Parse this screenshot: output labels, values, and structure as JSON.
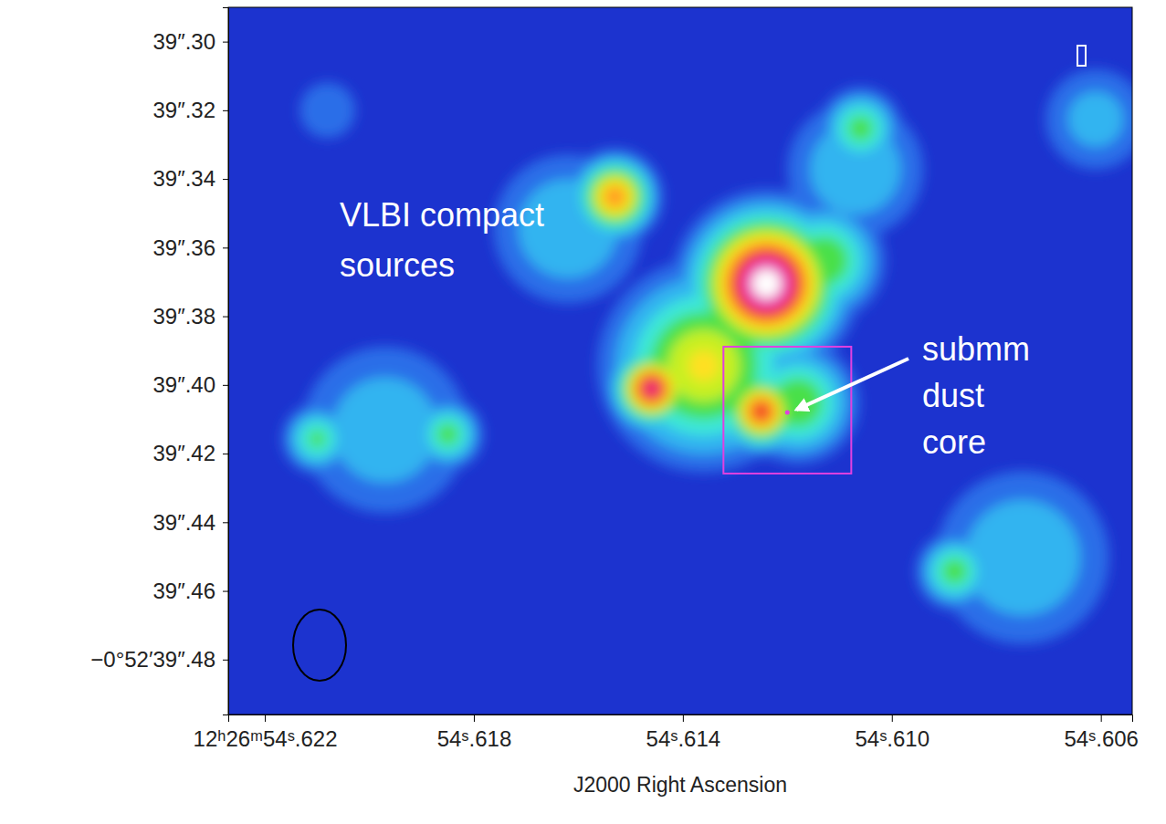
{
  "chart_data": {
    "type": "image",
    "xlabel": "J2000 Right Ascension",
    "xlim": [
      54.6227,
      54.6054
    ],
    "xticks": [
      {
        "value": 54.622,
        "label": "12ʰ26ᵐ54ˢ.622"
      },
      {
        "value": 54.618,
        "label": "54ˢ.618"
      },
      {
        "value": 54.614,
        "label": "54ˢ.614"
      },
      {
        "value": 54.61,
        "label": "54ˢ.610"
      },
      {
        "value": 54.606,
        "label": "54ˢ.606"
      }
    ],
    "ylim": [
      39.29,
      39.496
    ],
    "yticks": [
      {
        "value": 39.3,
        "label": "39″.30"
      },
      {
        "value": 39.32,
        "label": "39″.32"
      },
      {
        "value": 39.34,
        "label": "39″.34"
      },
      {
        "value": 39.36,
        "label": "39″.36"
      },
      {
        "value": 39.38,
        "label": "39″.38"
      },
      {
        "value": 39.4,
        "label": "39″.40"
      },
      {
        "value": 39.42,
        "label": "39″.42"
      },
      {
        "value": 39.44,
        "label": "39″.44"
      },
      {
        "value": 39.46,
        "label": "39″.46"
      },
      {
        "value": 39.48,
        "label": "−0°52′39″.48"
      }
    ],
    "sources": [
      {
        "ra": 54.6124,
        "dec": 39.3705,
        "peak": 1.0,
        "size": 0.0133
      },
      {
        "ra": 54.6146,
        "dec": 39.4011,
        "peak": 0.87,
        "size": 0.0069
      },
      {
        "ra": 54.6125,
        "dec": 39.4077,
        "peak": 0.8,
        "size": 0.0069
      },
      {
        "ra": 54.6153,
        "dec": 39.3452,
        "peak": 0.72,
        "size": 0.0074
      },
      {
        "ra": 54.6136,
        "dec": 39.3944,
        "peak": 0.6,
        "size": 0.0173
      },
      {
        "ra": 54.6113,
        "dec": 39.3638,
        "peak": 0.5,
        "size": 0.0106
      },
      {
        "ra": 54.6118,
        "dec": 39.4051,
        "peak": 0.5,
        "size": 0.0106
      },
      {
        "ra": 54.6106,
        "dec": 39.3253,
        "peak": 0.45,
        "size": 0.0074
      },
      {
        "ra": 54.6107,
        "dec": 39.3372,
        "peak": 0.3,
        "size": 0.0146
      },
      {
        "ra": 54.6185,
        "dec": 39.4144,
        "peak": 0.45,
        "size": 0.0064
      },
      {
        "ra": 54.621,
        "dec": 39.4157,
        "peak": 0.43,
        "size": 0.0064
      },
      {
        "ra": 54.6197,
        "dec": 39.4131,
        "peak": 0.28,
        "size": 0.0186
      },
      {
        "ra": 54.6088,
        "dec": 39.4543,
        "peak": 0.46,
        "size": 0.0069
      },
      {
        "ra": 54.6075,
        "dec": 39.4503,
        "peak": 0.3,
        "size": 0.0186
      },
      {
        "ra": 54.6061,
        "dec": 39.3226,
        "peak": 0.25,
        "size": 0.012
      },
      {
        "ra": 54.6162,
        "dec": 39.3545,
        "peak": 0.3,
        "size": 0.016
      },
      {
        "ra": 54.6208,
        "dec": 39.32,
        "peak": 0.2,
        "size": 0.008
      }
    ],
    "dust_core": {
      "ra": 54.612,
      "dec": 39.408
    },
    "annotations": [
      {
        "lines": [
          "VLBI compact",
          "sources"
        ]
      },
      {
        "lines": [
          "submm",
          "dust",
          "core"
        ]
      }
    ]
  }
}
